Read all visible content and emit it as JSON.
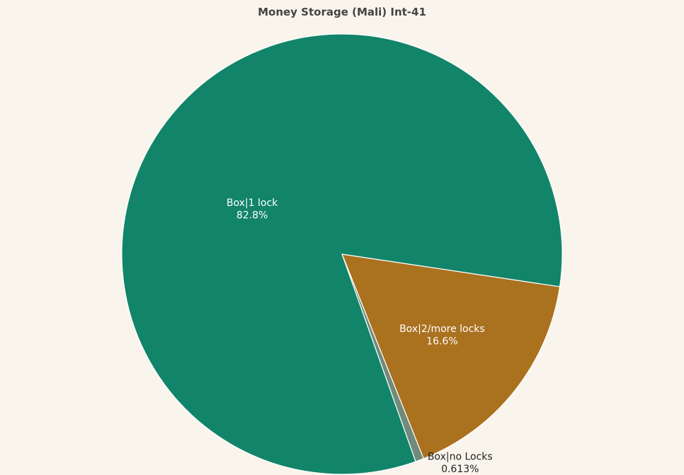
{
  "chart_data": {
    "type": "pie",
    "title": "Money Storage (Mali) Int-41",
    "slices": [
      {
        "label": "Box|2/more locks",
        "value": 16.6,
        "display": "16.6%",
        "color": "#aa711f"
      },
      {
        "label": "Box|no Locks",
        "value": 0.613,
        "display": "0.613%",
        "color": "#708a7b"
      },
      {
        "label": "Box|1 lock",
        "value": 82.8,
        "display": "82.8%",
        "color": "#12846a"
      }
    ],
    "legend": "none"
  }
}
